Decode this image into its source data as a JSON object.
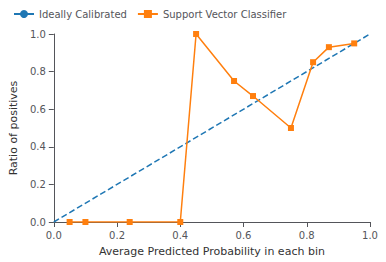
{
  "chart_data": {
    "type": "line",
    "xlabel": "Average Predicted Probability in each bin",
    "ylabel": "Ratio of positives",
    "series": [
      {
        "name": "Ideally Calibrated",
        "color": "#1f77b4",
        "line_style": "dashed",
        "x": [
          0.0,
          1.0
        ],
        "values": [
          0.0,
          1.0
        ]
      },
      {
        "name": "Support Vector Classifier",
        "color": "#ff7f0e",
        "marker": "square",
        "x": [
          0.05,
          0.1,
          0.24,
          0.4,
          0.45,
          0.57,
          0.63,
          0.75,
          0.82,
          0.87,
          0.95
        ],
        "values": [
          0.0,
          0.0,
          0.0,
          0.0,
          1.0,
          0.75,
          0.67,
          0.5,
          0.85,
          0.93,
          0.95
        ]
      }
    ],
    "xlim": [
      0.0,
      1.0
    ],
    "ylim": [
      0.0,
      1.0
    ],
    "xticks": [
      {
        "value": 0.0,
        "label": "0.0"
      },
      {
        "value": 0.2,
        "label": "0.2"
      },
      {
        "value": 0.4,
        "label": "0.4"
      },
      {
        "value": 0.6,
        "label": "0.6"
      },
      {
        "value": 0.8,
        "label": "0.8"
      },
      {
        "value": 1.0,
        "label": "1.0"
      }
    ],
    "yticks": [
      {
        "value": 0.0,
        "label": "0.0"
      },
      {
        "value": 0.2,
        "label": "0.2"
      },
      {
        "value": 0.4,
        "label": "0.4"
      },
      {
        "value": 0.6,
        "label": "0.6"
      },
      {
        "value": 0.8,
        "label": "0.8"
      },
      {
        "value": 1.0,
        "label": "1.0"
      }
    ],
    "grid": false,
    "legend": "upper left"
  }
}
